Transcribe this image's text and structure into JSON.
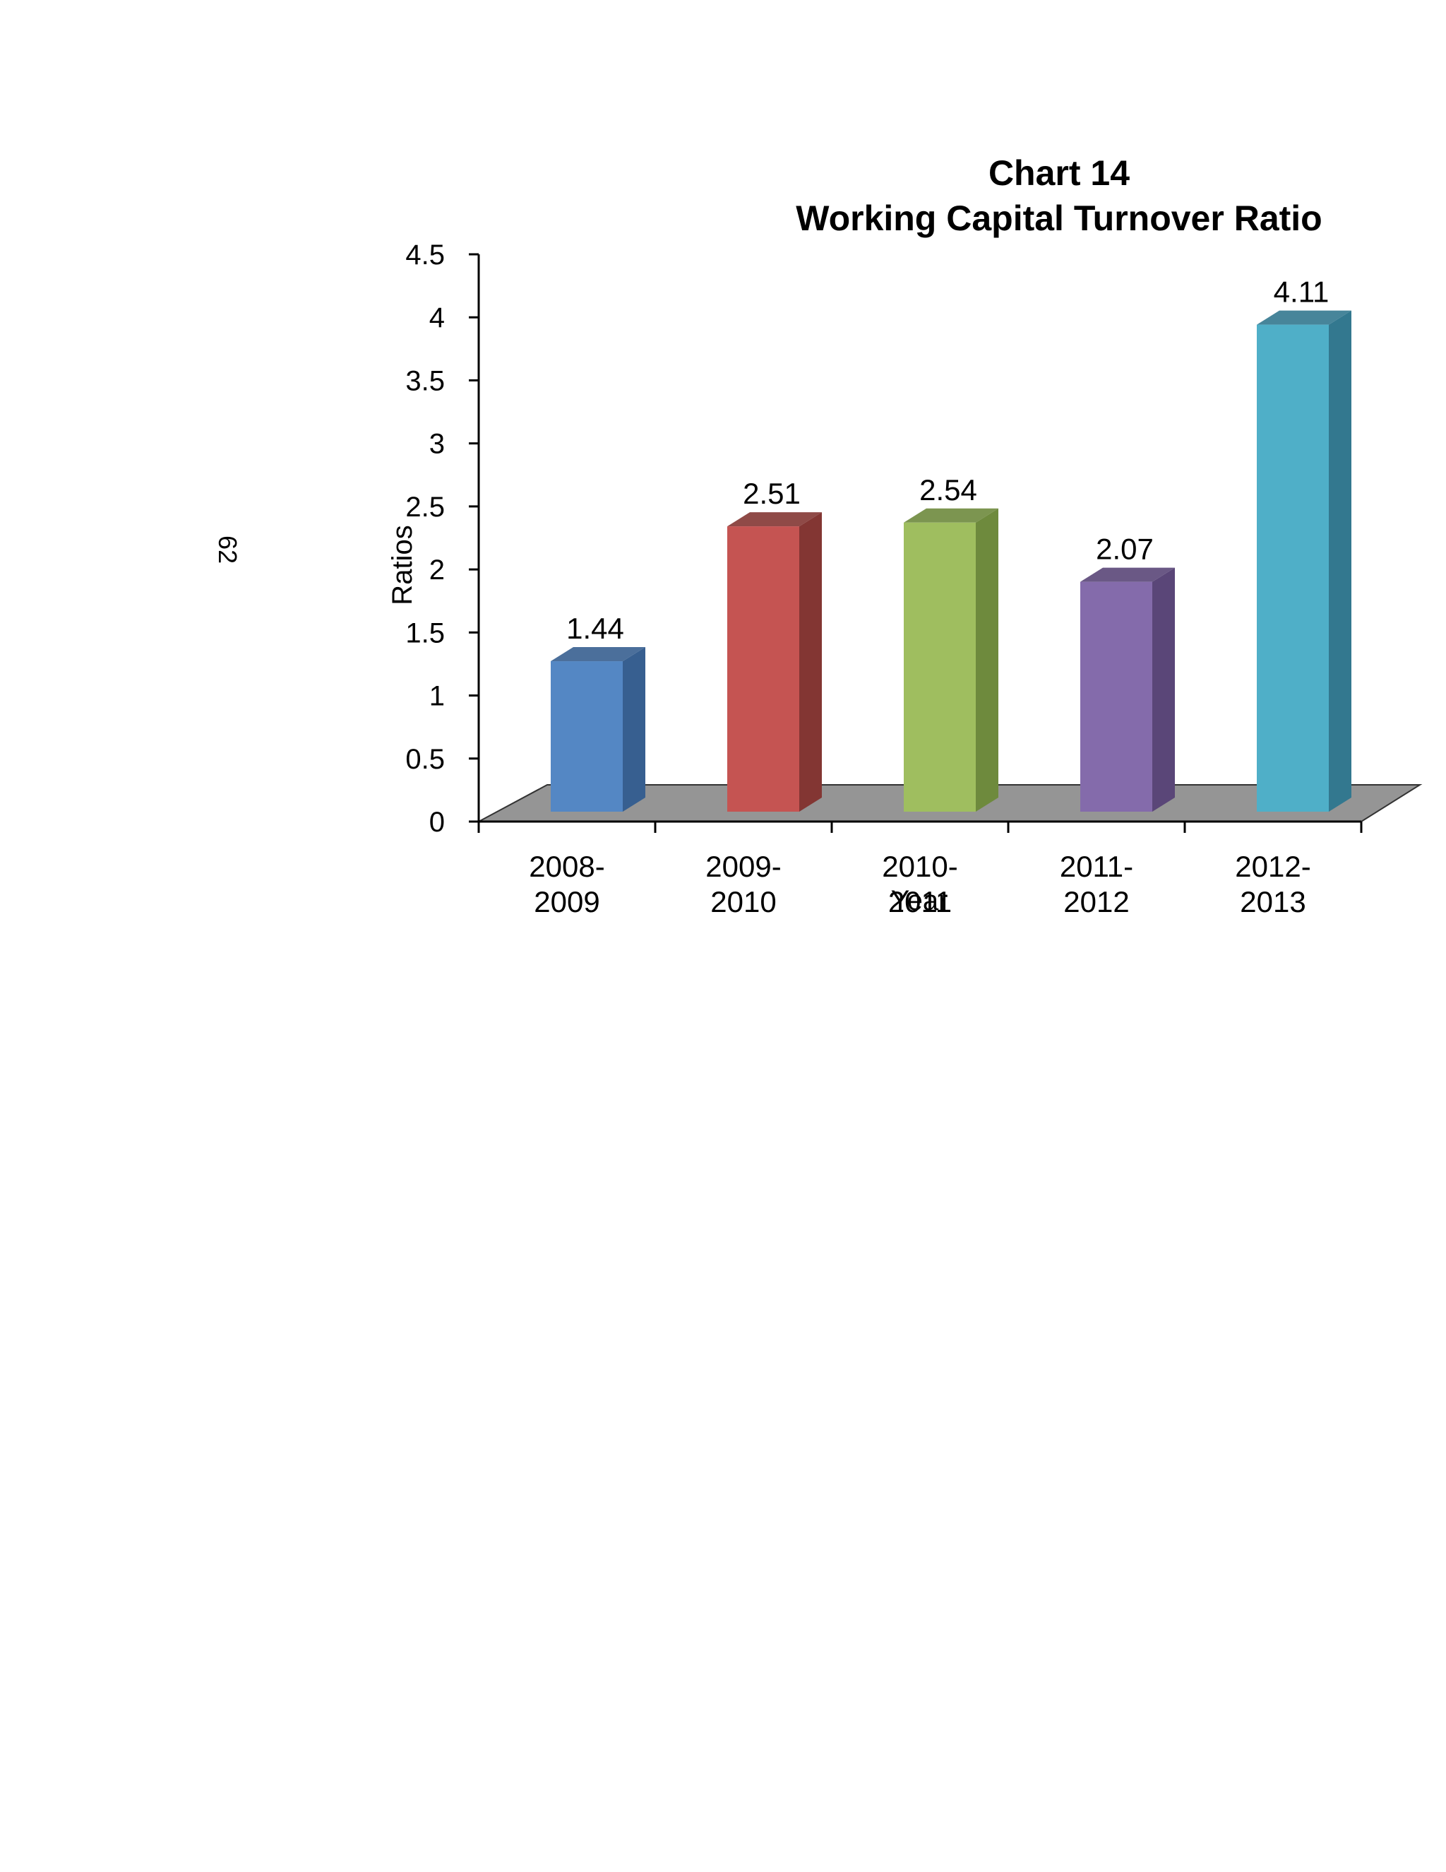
{
  "page_number": "62",
  "colors": {
    "bar_colors": [
      "#5487C4",
      "#C55452",
      "#9FBE5F",
      "#846BAB",
      "#4FAFC8"
    ],
    "bar_side_colors": [
      "#375F90",
      "#833633",
      "#6E8A3D",
      "#5A4678",
      "#33788F"
    ],
    "floor": "#959595"
  },
  "chart_data": {
    "type": "bar",
    "title": "Chart 14",
    "subtitle": "Working Capital Turnover Ratio",
    "xlabel": "Year",
    "ylabel": "Ratios",
    "categories": [
      [
        "2008-",
        "2009"
      ],
      [
        "2009-",
        "2010"
      ],
      [
        "2010-",
        "2011"
      ],
      [
        "2011-",
        "2012"
      ],
      [
        "2012-",
        "2013"
      ]
    ],
    "values": [
      1.44,
      2.51,
      2.54,
      2.07,
      4.11
    ],
    "data_labels": [
      "1.44",
      "2.51",
      "2.54",
      "2.07",
      "4.11"
    ],
    "yticks": [
      "0",
      "0.5",
      "1",
      "1.5",
      "2",
      "2.5",
      "3",
      "3.5",
      "4",
      "4.5"
    ],
    "ylim": [
      0,
      4.5
    ],
    "grid": false,
    "legend": "none",
    "style": "3d-column"
  }
}
